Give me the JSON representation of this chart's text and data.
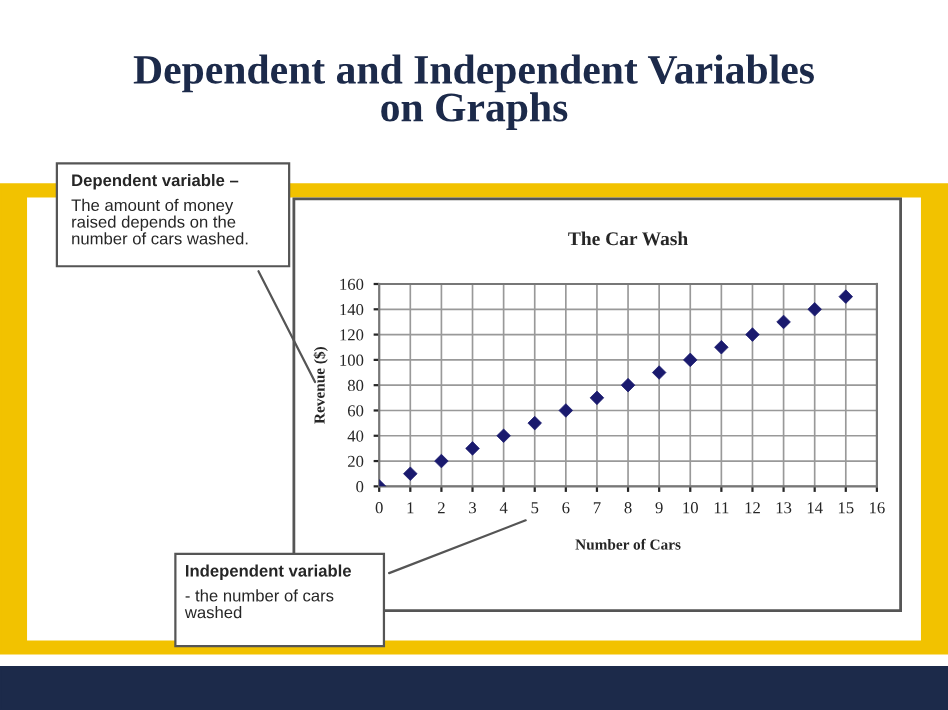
{
  "chart_data": {
    "type": "scatter",
    "title": "The Car Wash",
    "xlabel": "Number of Cars",
    "ylabel": "Revenue ($)",
    "x": [
      0,
      1,
      2,
      3,
      4,
      5,
      6,
      7,
      8,
      9,
      10,
      11,
      12,
      13,
      14,
      15
    ],
    "series": [
      {
        "color": "#1a1a6e",
        "values": [
          0,
          10,
          20,
          30,
          40,
          50,
          60,
          70,
          80,
          90,
          100,
          110,
          120,
          130,
          140,
          150
        ]
      }
    ],
    "xlim": [
      0,
      16
    ],
    "xticks": [
      0,
      1,
      2,
      3,
      4,
      5,
      6,
      7,
      8,
      9,
      10,
      11,
      12,
      13,
      14,
      15,
      16
    ],
    "ylim": [
      0,
      160
    ],
    "yticks": [
      0,
      20,
      40,
      60,
      80,
      100,
      120,
      140,
      160
    ],
    "grid": true,
    "marker": "diamond",
    "legend": false,
    "annotations": [
      "Dependent and Independent Variables\non Graphs",
      "Dependent variable –",
      "The amount of money\nraised depends on the\nnumber of cars washed.",
      "Independent variable",
      "- the number of cars\nwashed"
    ]
  }
}
